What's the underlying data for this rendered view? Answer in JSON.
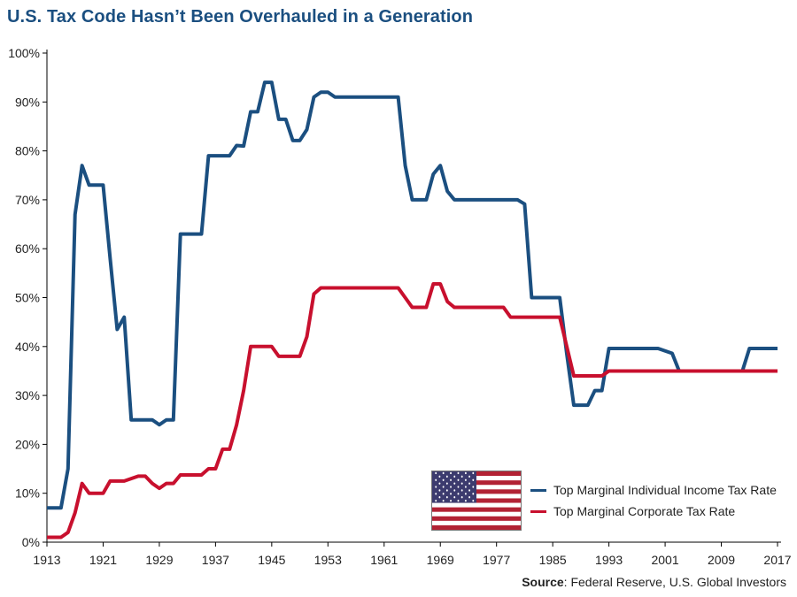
{
  "title": "U.S. Tax Code Hasn’t Been Overhauled in a Generation",
  "source_label": "Source",
  "source_text": ": Federal Reserve, U.S. Global Investors",
  "legend": {
    "flag_icon": "us-flag-icon",
    "items": [
      {
        "label": "Top Marginal Individual Income Tax Rate",
        "color": "#1b4f80"
      },
      {
        "label": "Top Marginal Corporate Tax Rate",
        "color": "#c8102e"
      }
    ]
  },
  "chart_data": {
    "type": "line",
    "title": "U.S. Tax Code Hasn’t Been Overhauled in a Generation",
    "xlabel": "",
    "ylabel": "",
    "xlim": [
      1913,
      2018
    ],
    "ylim": [
      0,
      100
    ],
    "x_ticks": [
      1913,
      1921,
      1929,
      1937,
      1945,
      1953,
      1961,
      1969,
      1977,
      1985,
      1993,
      2001,
      2009,
      2017
    ],
    "y_ticks": [
      "0%",
      "10%",
      "20%",
      "30%",
      "40%",
      "50%",
      "60%",
      "70%",
      "80%",
      "90%",
      "100%"
    ],
    "grid": false,
    "legend_position": "bottom-right",
    "series": [
      {
        "name": "Top Marginal Individual Income Tax Rate",
        "color": "#1b4f80",
        "points": [
          [
            1913,
            7
          ],
          [
            1914,
            7
          ],
          [
            1915,
            7
          ],
          [
            1916,
            15
          ],
          [
            1917,
            67
          ],
          [
            1918,
            77
          ],
          [
            1919,
            73
          ],
          [
            1920,
            73
          ],
          [
            1921,
            73
          ],
          [
            1922,
            58
          ],
          [
            1923,
            43.5
          ],
          [
            1924,
            46
          ],
          [
            1925,
            25
          ],
          [
            1926,
            25
          ],
          [
            1927,
            25
          ],
          [
            1928,
            25
          ],
          [
            1929,
            24
          ],
          [
            1930,
            25
          ],
          [
            1931,
            25
          ],
          [
            1932,
            63
          ],
          [
            1933,
            63
          ],
          [
            1934,
            63
          ],
          [
            1935,
            63
          ],
          [
            1936,
            79
          ],
          [
            1937,
            79
          ],
          [
            1938,
            79
          ],
          [
            1939,
            79
          ],
          [
            1940,
            81.1
          ],
          [
            1941,
            81
          ],
          [
            1942,
            88
          ],
          [
            1943,
            88
          ],
          [
            1944,
            94
          ],
          [
            1945,
            94
          ],
          [
            1946,
            86.45
          ],
          [
            1947,
            86.45
          ],
          [
            1948,
            82.13
          ],
          [
            1949,
            82.13
          ],
          [
            1950,
            84.36
          ],
          [
            1951,
            91
          ],
          [
            1952,
            92
          ],
          [
            1953,
            92
          ],
          [
            1954,
            91
          ],
          [
            1955,
            91
          ],
          [
            1956,
            91
          ],
          [
            1957,
            91
          ],
          [
            1958,
            91
          ],
          [
            1959,
            91
          ],
          [
            1960,
            91
          ],
          [
            1961,
            91
          ],
          [
            1962,
            91
          ],
          [
            1963,
            91
          ],
          [
            1964,
            77
          ],
          [
            1965,
            70
          ],
          [
            1966,
            70
          ],
          [
            1967,
            70
          ],
          [
            1968,
            75.25
          ],
          [
            1969,
            77
          ],
          [
            1970,
            71.75
          ],
          [
            1971,
            70
          ],
          [
            1972,
            70
          ],
          [
            1973,
            70
          ],
          [
            1974,
            70
          ],
          [
            1975,
            70
          ],
          [
            1976,
            70
          ],
          [
            1977,
            70
          ],
          [
            1978,
            70
          ],
          [
            1979,
            70
          ],
          [
            1980,
            70
          ],
          [
            1981,
            69.13
          ],
          [
            1982,
            50
          ],
          [
            1983,
            50
          ],
          [
            1984,
            50
          ],
          [
            1985,
            50
          ],
          [
            1986,
            50
          ],
          [
            1987,
            38.5
          ],
          [
            1988,
            28
          ],
          [
            1989,
            28
          ],
          [
            1990,
            28
          ],
          [
            1991,
            31
          ],
          [
            1992,
            31
          ],
          [
            1993,
            39.6
          ],
          [
            1994,
            39.6
          ],
          [
            1995,
            39.6
          ],
          [
            1996,
            39.6
          ],
          [
            1997,
            39.6
          ],
          [
            1998,
            39.6
          ],
          [
            1999,
            39.6
          ],
          [
            2000,
            39.6
          ],
          [
            2001,
            39.1
          ],
          [
            2002,
            38.6
          ],
          [
            2003,
            35
          ],
          [
            2004,
            35
          ],
          [
            2005,
            35
          ],
          [
            2006,
            35
          ],
          [
            2007,
            35
          ],
          [
            2008,
            35
          ],
          [
            2009,
            35
          ],
          [
            2010,
            35
          ],
          [
            2011,
            35
          ],
          [
            2012,
            35
          ],
          [
            2013,
            39.6
          ],
          [
            2014,
            39.6
          ],
          [
            2015,
            39.6
          ],
          [
            2016,
            39.6
          ],
          [
            2017,
            39.6
          ]
        ]
      },
      {
        "name": "Top Marginal Corporate Tax Rate",
        "color": "#c8102e",
        "points": [
          [
            1913,
            1
          ],
          [
            1914,
            1
          ],
          [
            1915,
            1
          ],
          [
            1916,
            2
          ],
          [
            1917,
            6
          ],
          [
            1918,
            12
          ],
          [
            1919,
            10
          ],
          [
            1920,
            10
          ],
          [
            1921,
            10
          ],
          [
            1922,
            12.5
          ],
          [
            1923,
            12.5
          ],
          [
            1924,
            12.5
          ],
          [
            1925,
            13
          ],
          [
            1926,
            13.5
          ],
          [
            1927,
            13.5
          ],
          [
            1928,
            12
          ],
          [
            1929,
            11
          ],
          [
            1930,
            12
          ],
          [
            1931,
            12
          ],
          [
            1932,
            13.75
          ],
          [
            1933,
            13.75
          ],
          [
            1934,
            13.75
          ],
          [
            1935,
            13.75
          ],
          [
            1936,
            15
          ],
          [
            1937,
            15
          ],
          [
            1938,
            19
          ],
          [
            1939,
            19
          ],
          [
            1940,
            24
          ],
          [
            1941,
            31
          ],
          [
            1942,
            40
          ],
          [
            1943,
            40
          ],
          [
            1944,
            40
          ],
          [
            1945,
            40
          ],
          [
            1946,
            38
          ],
          [
            1947,
            38
          ],
          [
            1948,
            38
          ],
          [
            1949,
            38
          ],
          [
            1950,
            42
          ],
          [
            1951,
            50.75
          ],
          [
            1952,
            52
          ],
          [
            1953,
            52
          ],
          [
            1954,
            52
          ],
          [
            1955,
            52
          ],
          [
            1956,
            52
          ],
          [
            1957,
            52
          ],
          [
            1958,
            52
          ],
          [
            1959,
            52
          ],
          [
            1960,
            52
          ],
          [
            1961,
            52
          ],
          [
            1962,
            52
          ],
          [
            1963,
            52
          ],
          [
            1964,
            50
          ],
          [
            1965,
            48
          ],
          [
            1966,
            48
          ],
          [
            1967,
            48
          ],
          [
            1968,
            52.8
          ],
          [
            1969,
            52.8
          ],
          [
            1970,
            49.2
          ],
          [
            1971,
            48
          ],
          [
            1972,
            48
          ],
          [
            1973,
            48
          ],
          [
            1974,
            48
          ],
          [
            1975,
            48
          ],
          [
            1976,
            48
          ],
          [
            1977,
            48
          ],
          [
            1978,
            48
          ],
          [
            1979,
            46
          ],
          [
            1980,
            46
          ],
          [
            1981,
            46
          ],
          [
            1982,
            46
          ],
          [
            1983,
            46
          ],
          [
            1984,
            46
          ],
          [
            1985,
            46
          ],
          [
            1986,
            46
          ],
          [
            1987,
            40
          ],
          [
            1988,
            34
          ],
          [
            1989,
            34
          ],
          [
            1990,
            34
          ],
          [
            1991,
            34
          ],
          [
            1992,
            34
          ],
          [
            1993,
            35
          ],
          [
            1994,
            35
          ],
          [
            1995,
            35
          ],
          [
            1996,
            35
          ],
          [
            1997,
            35
          ],
          [
            1998,
            35
          ],
          [
            1999,
            35
          ],
          [
            2000,
            35
          ],
          [
            2001,
            35
          ],
          [
            2002,
            35
          ],
          [
            2003,
            35
          ],
          [
            2004,
            35
          ],
          [
            2005,
            35
          ],
          [
            2006,
            35
          ],
          [
            2007,
            35
          ],
          [
            2008,
            35
          ],
          [
            2009,
            35
          ],
          [
            2010,
            35
          ],
          [
            2011,
            35
          ],
          [
            2012,
            35
          ],
          [
            2013,
            35
          ],
          [
            2014,
            35
          ],
          [
            2015,
            35
          ],
          [
            2016,
            35
          ],
          [
            2017,
            35
          ]
        ]
      }
    ]
  }
}
